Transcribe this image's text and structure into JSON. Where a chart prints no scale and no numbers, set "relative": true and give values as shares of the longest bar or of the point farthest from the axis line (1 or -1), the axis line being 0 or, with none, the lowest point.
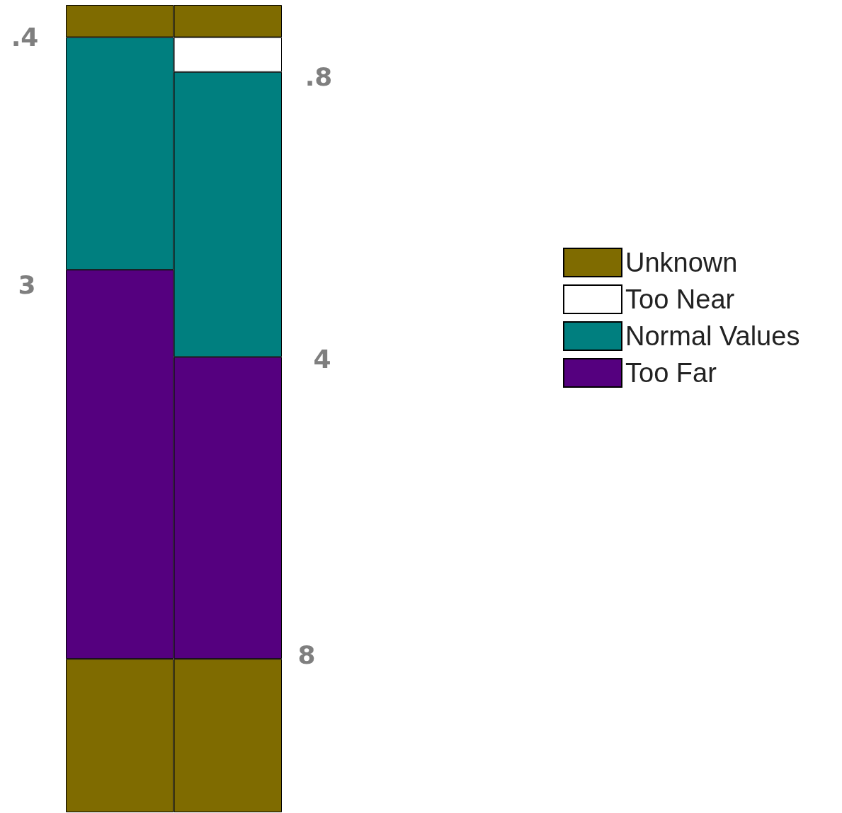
{
  "chart_data": {
    "type": "bar",
    "stacked": true,
    "relative": true,
    "categories": [
      null,
      null
    ],
    "legend": "right",
    "tick_labels": false,
    "series": [
      {
        "name": null,
        "color": "#7f6b00",
        "values": [
          0.19,
          0.19
        ]
      },
      {
        "name": "Too Far",
        "color": "#55007f",
        "values": [
          0.482,
          0.374
        ]
      },
      {
        "name": "Normal Values",
        "color": "#007f7f",
        "values": [
          0.288,
          0.353
        ]
      },
      {
        "name": "Too Near",
        "color": "#ffffff",
        "values": [
          null,
          0.043
        ]
      },
      {
        "name": "Unknown",
        "color": "#7f6b00",
        "values": [
          0.04,
          0.04
        ]
      }
    ],
    "annotations": [
      ".4",
      "3",
      ".8",
      "4",
      "8"
    ]
  }
}
